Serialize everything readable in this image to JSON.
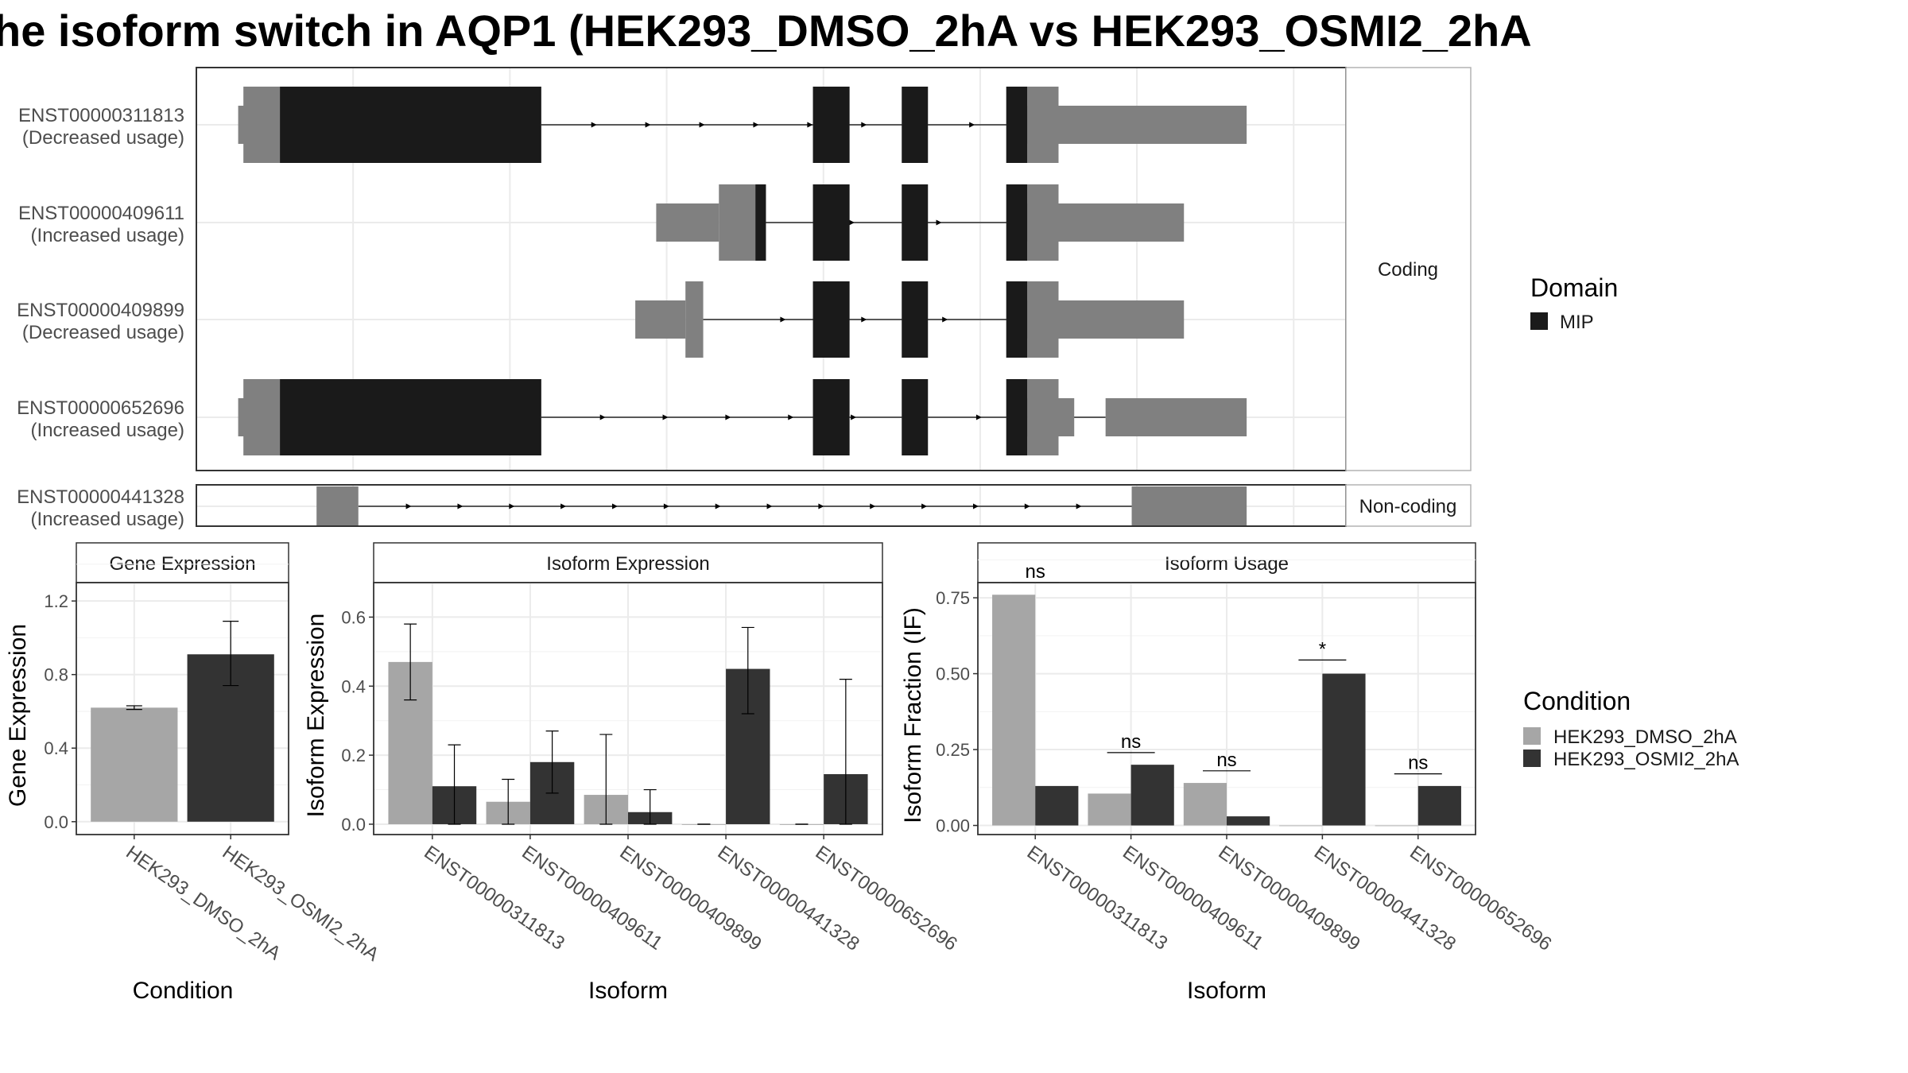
{
  "title": "he isoform switch in AQP1 (HEK293_DMSO_2hA vs HEK293_OSMI2_2hA",
  "colors": {
    "exon": "#808080",
    "domain": "#1a1a1a",
    "cond1": "#a6a6a6",
    "cond2": "#333333",
    "grid": "#ebebeb",
    "frame": "#333333",
    "strip_border": "#b3b3b3"
  },
  "structure": {
    "groups": [
      "Coding",
      "Non-coding"
    ],
    "legend": {
      "title": "Domain",
      "items": [
        {
          "label": "MIP",
          "color": "#1a1a1a"
        }
      ]
    },
    "xlim": [
      0,
      1100
    ],
    "transcripts": [
      {
        "id": "ENST00000311813",
        "usage": "(Decreased usage)",
        "group": "Coding",
        "exons": [
          [
            45,
            330,
            "full"
          ],
          [
            40,
            80,
            "utr"
          ],
          [
            590,
            625,
            "full"
          ],
          [
            675,
            700,
            "full"
          ],
          [
            775,
            795,
            "full"
          ],
          [
            795,
            1005,
            "utr"
          ],
          [
            795,
            825,
            "full"
          ]
        ],
        "domains": [
          [
            80,
            330
          ],
          [
            590,
            625
          ],
          [
            675,
            700
          ],
          [
            775,
            795
          ]
        ],
        "intron": [
          330,
          795
        ],
        "arrows": 8
      },
      {
        "id": "ENST00000409611",
        "usage": "(Increased usage)",
        "group": "Coding",
        "exons": [
          [
            440,
            500,
            "utr"
          ],
          [
            500,
            545,
            "full"
          ],
          [
            590,
            625,
            "full"
          ],
          [
            675,
            700,
            "full"
          ],
          [
            775,
            795,
            "full"
          ],
          [
            795,
            945,
            "utr"
          ],
          [
            795,
            825,
            "full"
          ]
        ],
        "domains": [
          [
            535,
            545
          ],
          [
            590,
            625
          ],
          [
            675,
            700
          ],
          [
            775,
            795
          ]
        ],
        "intron": [
          545,
          795
        ],
        "arrows": 2
      },
      {
        "id": "ENST00000409899",
        "usage": "(Decreased usage)",
        "group": "Coding",
        "exons": [
          [
            420,
            468,
            "utr"
          ],
          [
            468,
            485,
            "full"
          ],
          [
            590,
            625,
            "full"
          ],
          [
            675,
            700,
            "full"
          ],
          [
            775,
            795,
            "full"
          ],
          [
            795,
            945,
            "utr"
          ],
          [
            795,
            825,
            "full"
          ]
        ],
        "domains": [
          [
            590,
            625
          ],
          [
            675,
            700
          ],
          [
            775,
            795
          ]
        ],
        "intron": [
          485,
          795
        ],
        "arrows": 3
      },
      {
        "id": "ENST00000652696",
        "usage": "(Increased usage)",
        "group": "Coding",
        "exons": [
          [
            45,
            330,
            "full"
          ],
          [
            40,
            80,
            "utr"
          ],
          [
            590,
            625,
            "full"
          ],
          [
            675,
            700,
            "full"
          ],
          [
            775,
            795,
            "full"
          ],
          [
            795,
            840,
            "utr"
          ],
          [
            795,
            825,
            "full"
          ],
          [
            870,
            1005,
            "utr"
          ]
        ],
        "domains": [
          [
            80,
            330
          ],
          [
            590,
            625
          ],
          [
            675,
            700
          ],
          [
            775,
            795
          ]
        ],
        "intron": [
          330,
          870
        ],
        "arrows": 8
      },
      {
        "id": "ENST00000441328",
        "usage": "(Increased usage)",
        "group": "Non-coding",
        "exons": [
          [
            115,
            155,
            "full"
          ],
          [
            895,
            1005,
            "full"
          ]
        ],
        "domains": [],
        "intron": [
          155,
          895
        ],
        "arrows": 14
      }
    ]
  },
  "chart_data": [
    {
      "type": "bar",
      "title": "Gene Expression",
      "xlabel": "Condition",
      "ylabel": "Gene Expression",
      "categories": [
        "HEK293_DMSO_2hA",
        "HEK293_OSMI2_2hA"
      ],
      "values": [
        0.62,
        0.91
      ],
      "error": [
        [
          0.61,
          0.63
        ],
        [
          0.74,
          1.09
        ]
      ],
      "ylim": [
        -0.07,
        1.3
      ],
      "yticks": [
        "0.0",
        "0.4",
        "0.8",
        "1.2"
      ],
      "grid": true
    },
    {
      "type": "bar",
      "title": "Isoform Expression",
      "xlabel": "Isoform",
      "ylabel": "Isoform Expression",
      "categories": [
        "ENST00000311813",
        "ENST00000409611",
        "ENST00000409899",
        "ENST00000441328",
        "ENST00000652696"
      ],
      "series": [
        {
          "name": "HEK293_DMSO_2hA",
          "values": [
            0.47,
            0.065,
            0.085,
            0.0,
            0.0
          ],
          "error": [
            [
              0.36,
              0.58
            ],
            [
              0.0,
              0.13
            ],
            [
              0.0,
              0.26
            ],
            [
              0.0,
              0.0
            ],
            [
              0.0,
              0.0
            ]
          ]
        },
        {
          "name": "HEK293_OSMI2_2hA",
          "values": [
            0.11,
            0.18,
            0.035,
            0.45,
            0.145
          ],
          "error": [
            [
              0.0,
              0.23
            ],
            [
              0.09,
              0.27
            ],
            [
              0.0,
              0.1
            ],
            [
              0.32,
              0.57
            ],
            [
              0.0,
              0.42
            ]
          ]
        }
      ],
      "ylim": [
        -0.03,
        0.7
      ],
      "yticks": [
        "0.0",
        "0.2",
        "0.4",
        "0.6"
      ],
      "grid": true
    },
    {
      "type": "bar",
      "title": "Isoform Usage",
      "xlabel": "Isoform",
      "ylabel": "Isoform Fraction (IF)",
      "categories": [
        "ENST00000311813",
        "ENST00000409611",
        "ENST00000409899",
        "ENST00000441328",
        "ENST00000652696"
      ],
      "series": [
        {
          "name": "HEK293_DMSO_2hA",
          "values": [
            0.76,
            0.105,
            0.14,
            0.0,
            0.0
          ]
        },
        {
          "name": "HEK293_OSMI2_2hA",
          "values": [
            0.13,
            0.2,
            0.03,
            0.5,
            0.13
          ]
        }
      ],
      "significance": [
        {
          "label": "ns",
          "y": 0.8
        },
        {
          "label": "ns",
          "y": 0.24
        },
        {
          "label": "ns",
          "y": 0.18
        },
        {
          "label": "*",
          "y": 0.545
        },
        {
          "label": "ns",
          "y": 0.17
        }
      ],
      "ylim": [
        -0.03,
        0.8
      ],
      "yticks": [
        "0.00",
        "0.25",
        "0.50",
        "0.75"
      ],
      "grid": true
    }
  ],
  "condition_legend": {
    "title": "Condition",
    "items": [
      {
        "label": "HEK293_DMSO_2hA",
        "color": "#a6a6a6"
      },
      {
        "label": "HEK293_OSMI2_2hA",
        "color": "#333333"
      }
    ]
  }
}
